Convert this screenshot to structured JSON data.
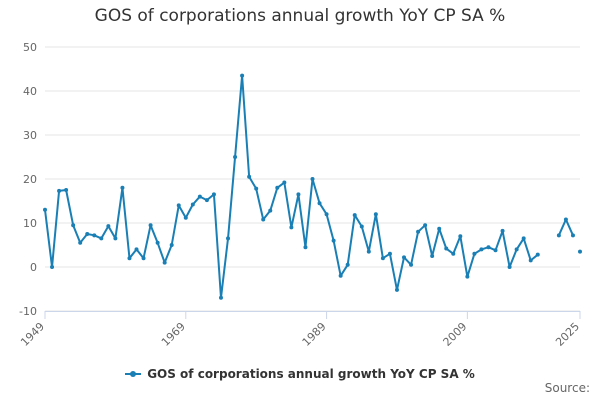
{
  "colors": {
    "series": "#1a7fb5",
    "grid": "#e6e6e6",
    "axis": "#ccd6eb"
  },
  "chart_data": {
    "type": "line",
    "title": "GOS of corporations annual growth YoY CP SA %",
    "xlabel": "",
    "ylabel": "",
    "ylim": [
      -10,
      50
    ],
    "y_ticks": [
      -10,
      0,
      10,
      20,
      30,
      40,
      50
    ],
    "xlim": [
      1949,
      2025
    ],
    "x_ticks": [
      1949,
      1969,
      1989,
      2009,
      2025
    ],
    "legend": "bottom-center",
    "credits": "Source:",
    "series": [
      {
        "name": "GOS of corporations annual growth YoY CP SA %",
        "x": [
          1949,
          1950,
          1951,
          1952,
          1953,
          1954,
          1955,
          1956,
          1957,
          1958,
          1959,
          1960,
          1961,
          1962,
          1963,
          1964,
          1965,
          1966,
          1967,
          1968,
          1969,
          1970,
          1971,
          1972,
          1973,
          1974,
          1975,
          1976,
          1977,
          1978,
          1979,
          1980,
          1981,
          1982,
          1983,
          1984,
          1985,
          1986,
          1987,
          1988,
          1989,
          1990,
          1991,
          1992,
          1993,
          1994,
          1995,
          1996,
          1997,
          1998,
          1999,
          2000,
          2001,
          2002,
          2003,
          2004,
          2005,
          2006,
          2007,
          2008,
          2009,
          2010,
          2011,
          2012,
          2013,
          2014,
          2015,
          2016,
          2017,
          2018,
          2019,
          2020,
          2021,
          2022,
          2023,
          2024,
          2025
        ],
        "values": [
          13,
          0,
          17.3,
          17.5,
          9.5,
          5.5,
          7.5,
          7.2,
          6.5,
          9.3,
          6.5,
          18,
          2,
          4,
          2,
          9.5,
          5.5,
          1,
          5,
          14,
          11.2,
          14.2,
          16,
          15.2,
          16.5,
          -7,
          6.5,
          25,
          43.5,
          20.5,
          17.8,
          10.8,
          12.8,
          18,
          19.2,
          9,
          16.5,
          4.5,
          20,
          14.5,
          12,
          6,
          -2,
          0.5,
          11.8,
          9.2,
          3.5,
          12,
          2,
          3,
          -5.2,
          2.2,
          0.5,
          8,
          9.5,
          2.5,
          8.7,
          4.2,
          3,
          7,
          -2.2,
          3,
          4,
          4.5,
          3.8,
          8.2,
          0,
          4,
          6.5,
          1.5,
          2.8,
          null,
          null,
          7.2,
          10.8,
          7.2,
          null
        ],
        "isolated_last": 3.5
      }
    ]
  }
}
